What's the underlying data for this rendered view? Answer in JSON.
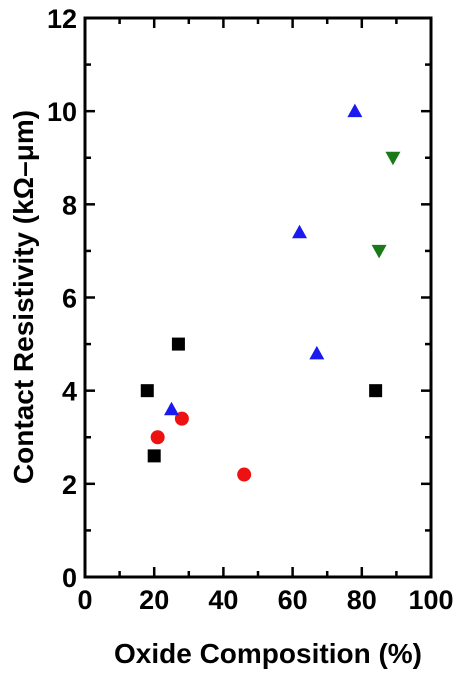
{
  "chart_data": {
    "type": "scatter",
    "title": "",
    "xlabel": "Oxide Composition (%)",
    "ylabel": "Contact Resistivity (kΩ–μm)",
    "xlim": [
      0,
      100
    ],
    "ylim": [
      0,
      12
    ],
    "x_ticks": [
      "0",
      "20",
      "40",
      "60",
      "80",
      "100"
    ],
    "y_ticks": [
      "0",
      "2",
      "4",
      "6",
      "8",
      "10",
      "12"
    ],
    "grid": false,
    "series": [
      {
        "marker": "square",
        "color": "#000000",
        "points": [
          {
            "x": 18,
            "y": 4.0
          },
          {
            "x": 20,
            "y": 2.6
          },
          {
            "x": 27,
            "y": 5.0
          },
          {
            "x": 84,
            "y": 4.0
          }
        ]
      },
      {
        "marker": "circle",
        "color": "#ee1111",
        "points": [
          {
            "x": 21,
            "y": 3.0
          },
          {
            "x": 28,
            "y": 3.4
          },
          {
            "x": 46,
            "y": 2.2
          }
        ]
      },
      {
        "marker": "triangle-up",
        "color": "#1a1aee",
        "points": [
          {
            "x": 25,
            "y": 3.6
          },
          {
            "x": 62,
            "y": 7.4
          },
          {
            "x": 67,
            "y": 4.8
          },
          {
            "x": 78,
            "y": 10.0
          }
        ]
      },
      {
        "marker": "triangle-down",
        "color": "#1a7a1a",
        "points": [
          {
            "x": 85,
            "y": 7.0
          },
          {
            "x": 89,
            "y": 9.0
          }
        ]
      }
    ]
  }
}
